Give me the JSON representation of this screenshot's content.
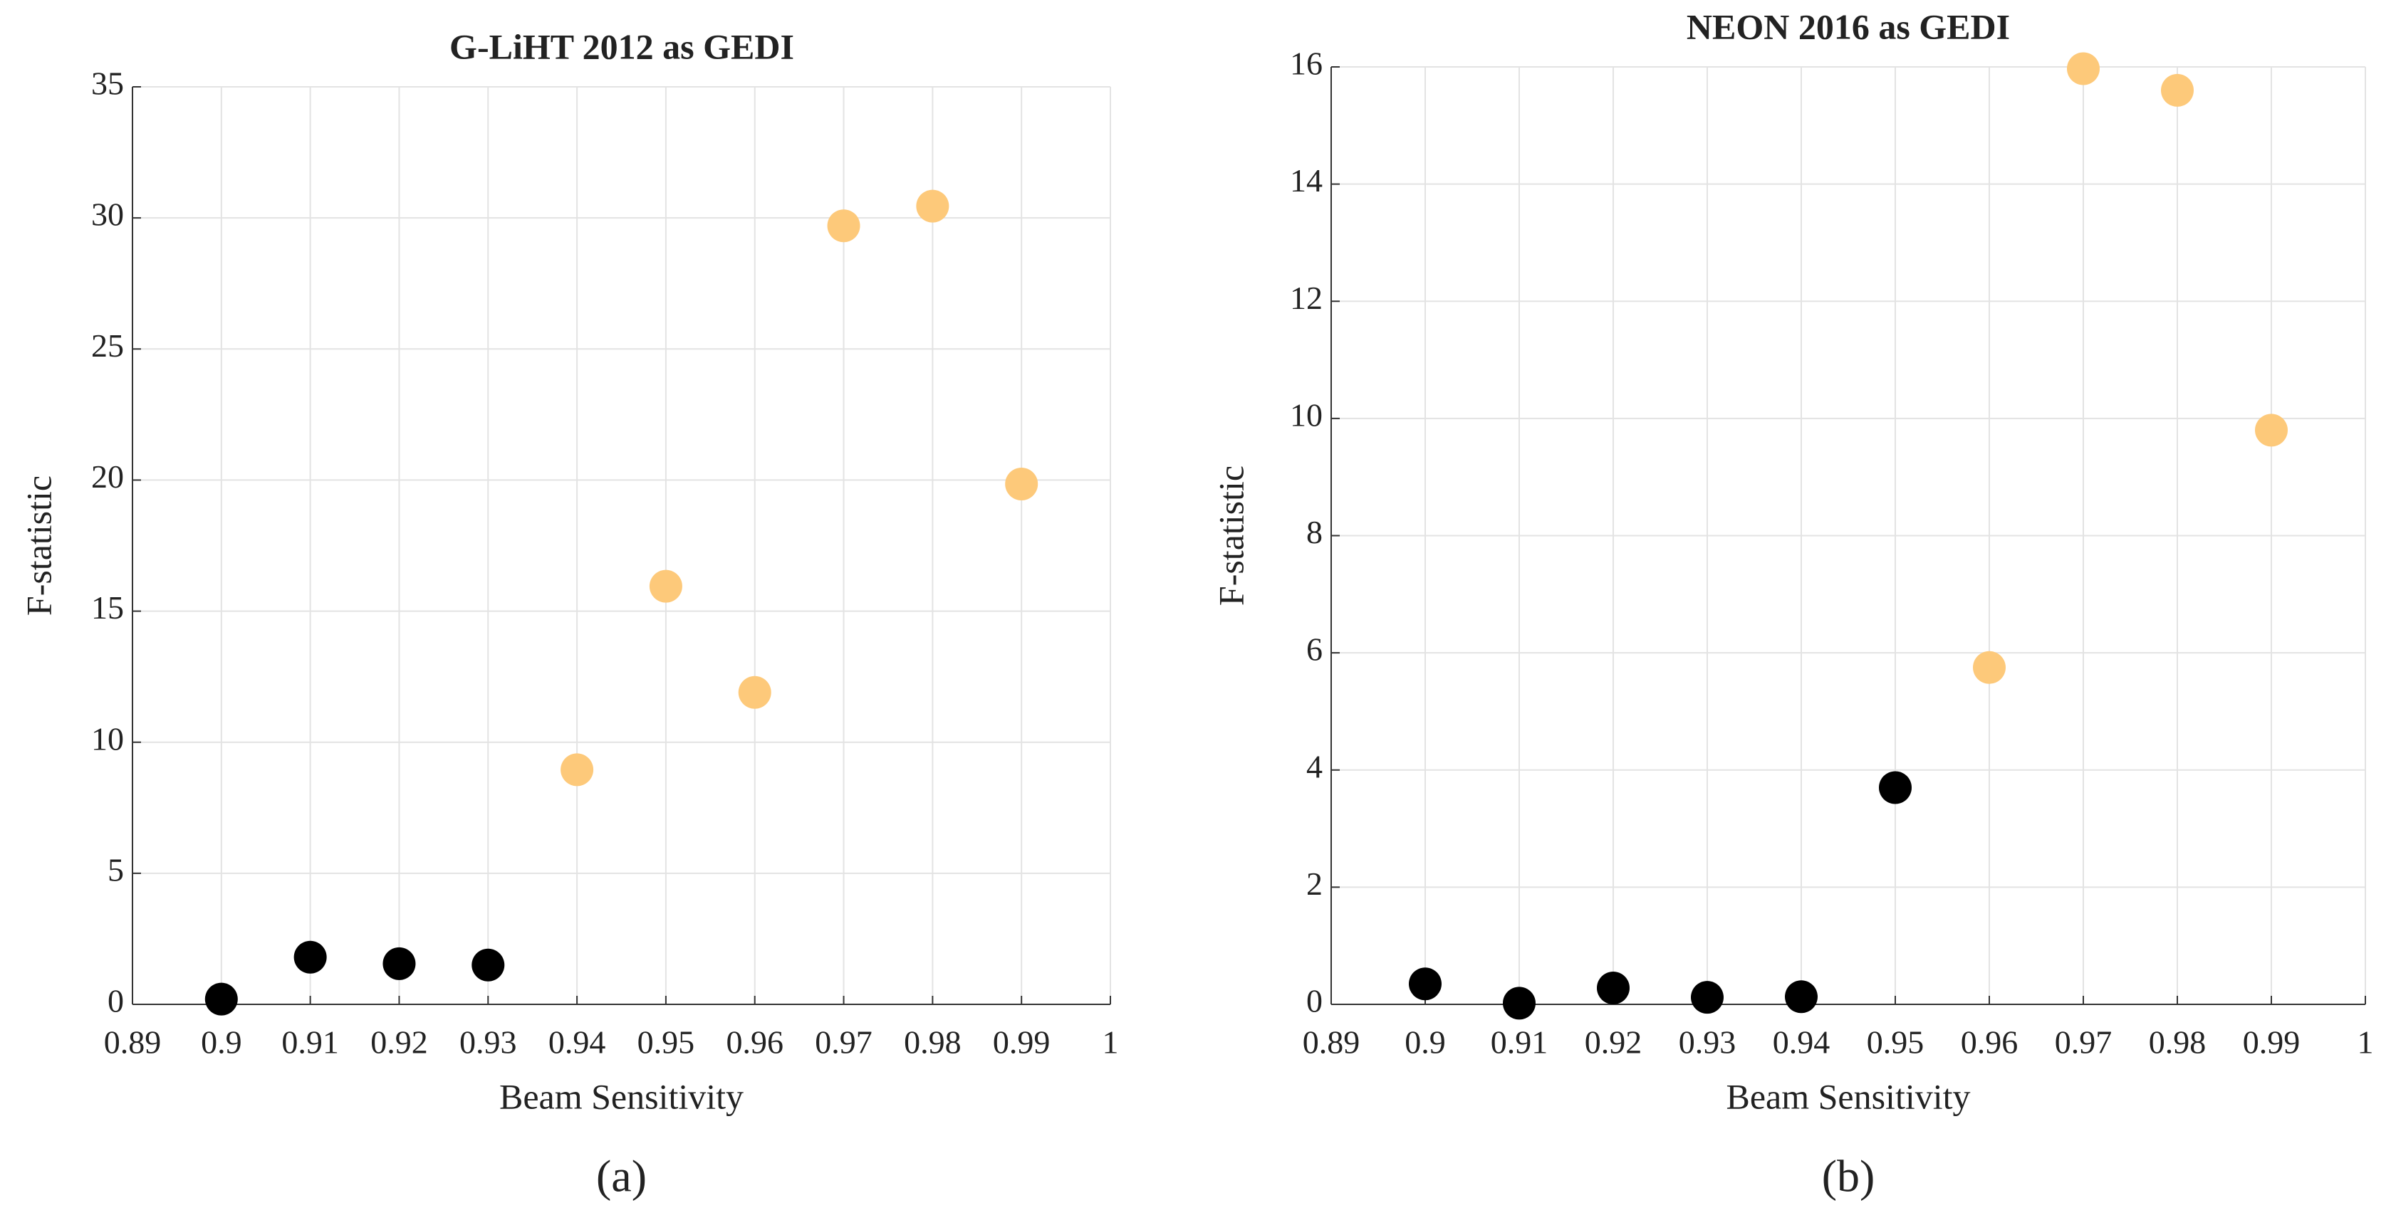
{
  "chart_data": [
    {
      "type": "scatter",
      "title": "G-LiHT 2012 as GEDI",
      "x_label": "Beam Sensitivity",
      "y_label": "F-statistic",
      "panel_label": "(a)",
      "x": [
        0.9,
        0.91,
        0.92,
        0.93,
        0.94,
        0.95,
        0.96,
        0.97,
        0.98,
        0.99
      ],
      "values": [
        0.2,
        1.8,
        1.55,
        1.5,
        8.95,
        15.95,
        11.9,
        29.7,
        30.45,
        19.85
      ],
      "colors": [
        "#000000",
        "#000000",
        "#000000",
        "#000000",
        "#fdc97a",
        "#fdc97a",
        "#fdc97a",
        "#fdc97a",
        "#fdc97a",
        "#fdc97a"
      ],
      "xlim": [
        0.89,
        1
      ],
      "xticks": [
        0.89,
        0.9,
        0.91,
        0.92,
        0.93,
        0.94,
        0.95,
        0.96,
        0.97,
        0.98,
        0.99,
        1
      ],
      "ylim": [
        0,
        35
      ],
      "yticks": [
        0,
        5,
        10,
        15,
        20,
        25,
        30,
        35
      ],
      "grid": true
    },
    {
      "type": "scatter",
      "title": "NEON 2016 as GEDI",
      "x_label": "Beam Sensitivity",
      "y_label": "F-statistic",
      "panel_label": "(b)",
      "x": [
        0.9,
        0.91,
        0.92,
        0.93,
        0.94,
        0.95,
        0.96,
        0.97,
        0.98,
        0.99
      ],
      "values": [
        0.35,
        0.02,
        0.28,
        0.12,
        0.13,
        3.7,
        5.75,
        15.97,
        15.6,
        9.8
      ],
      "colors": [
        "#000000",
        "#000000",
        "#000000",
        "#000000",
        "#000000",
        "#000000",
        "#fdc97a",
        "#fdc97a",
        "#fdc97a",
        "#fdc97a"
      ],
      "xlim": [
        0.89,
        1
      ],
      "xticks": [
        0.89,
        0.9,
        0.91,
        0.92,
        0.93,
        0.94,
        0.95,
        0.96,
        0.97,
        0.98,
        0.99,
        1
      ],
      "ylim": [
        0,
        16
      ],
      "yticks": [
        0,
        2,
        4,
        6,
        8,
        10,
        12,
        14,
        16
      ],
      "grid": true
    }
  ]
}
